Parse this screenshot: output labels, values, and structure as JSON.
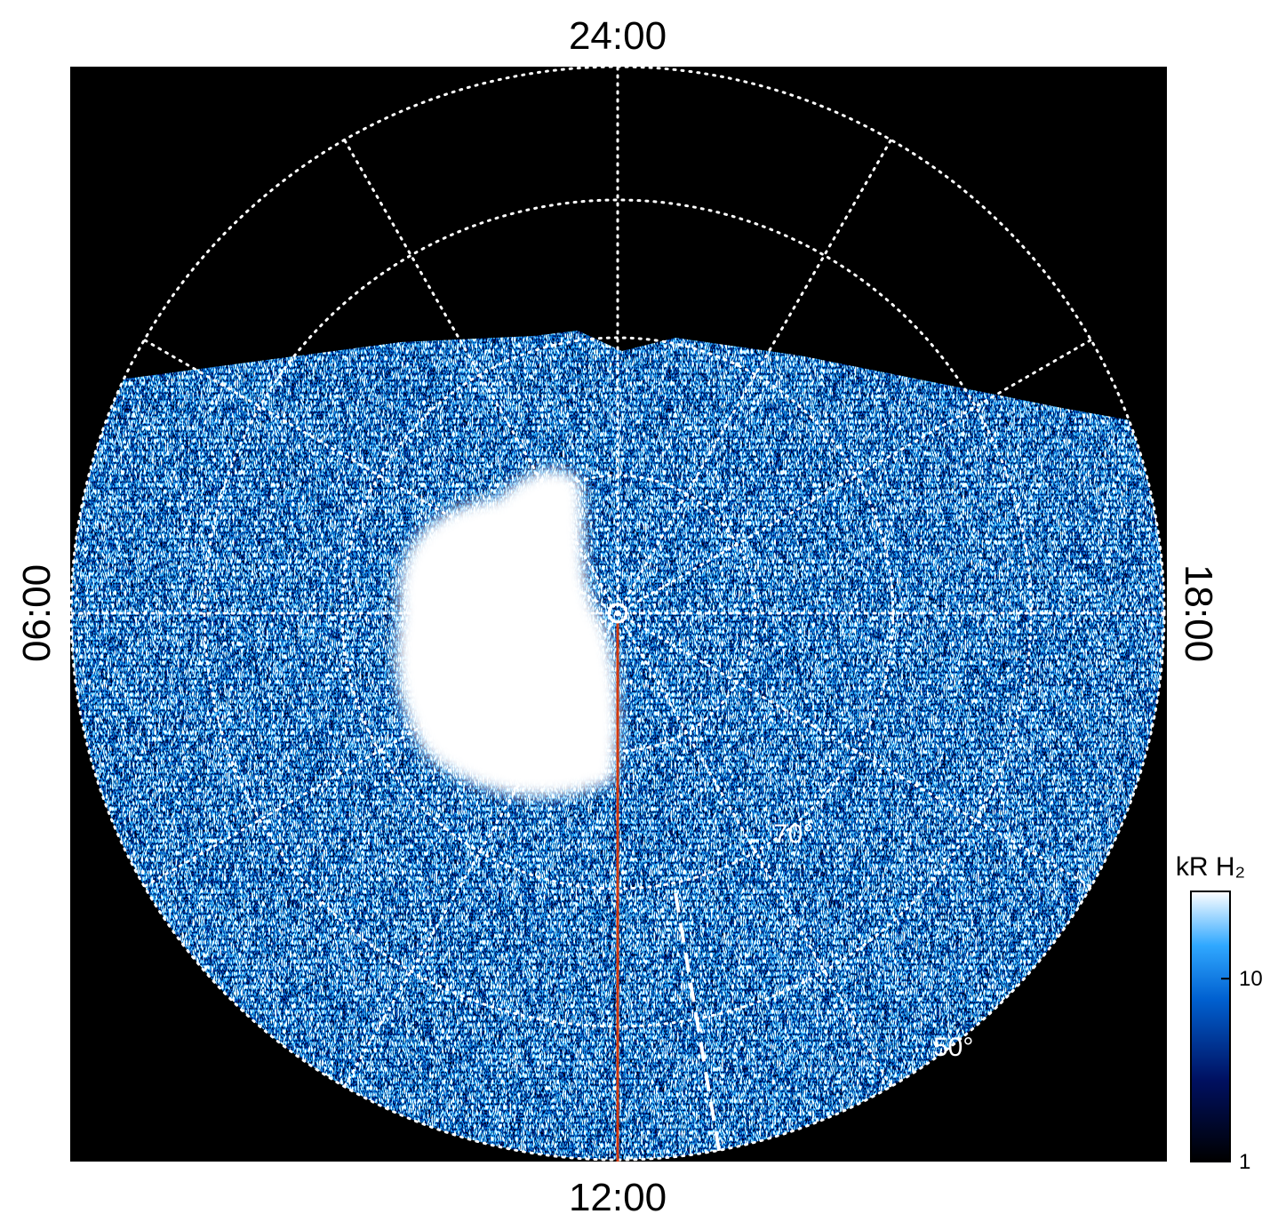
{
  "local_time_labels": {
    "top": "24:00",
    "left": "06:00",
    "bottom": "12:00",
    "right": "18:00"
  },
  "latitude_labels": [
    "70°",
    "50°"
  ],
  "colorbar": {
    "title": "kR H₂",
    "scale": "log",
    "lim": [
      1,
      30
    ],
    "ticks": [
      1,
      10
    ]
  }
}
